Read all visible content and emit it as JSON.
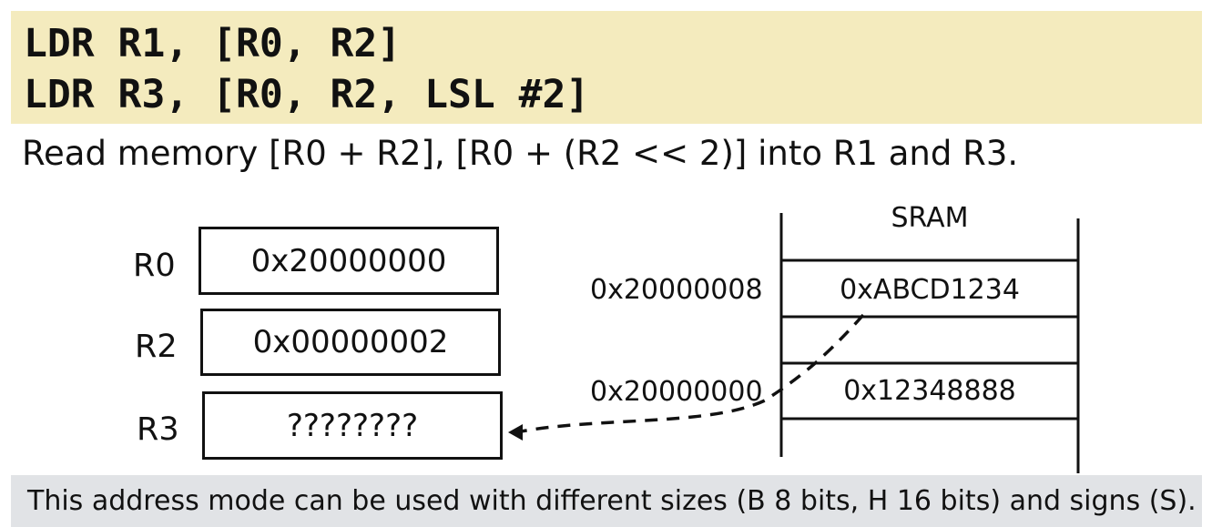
{
  "code": {
    "line1": "LDR R1, [R0, R2]",
    "line2": "LDR R3, [R0, R2, LSL #2]"
  },
  "description": "Read memory [R0 + R2], [R0 + (R2 << 2)] into R1 and R3.",
  "registers": [
    {
      "name": "R0",
      "value": "0x20000000"
    },
    {
      "name": "R2",
      "value": "0x00000002"
    },
    {
      "name": "R3",
      "value": "????????"
    }
  ],
  "memory": {
    "title": "SRAM",
    "cells": [
      {
        "address": "0x20000008",
        "value": "0xABCD1234"
      },
      {
        "address": "",
        "value": ""
      },
      {
        "address": "0x20000000",
        "value": "0x12348888"
      }
    ]
  },
  "note": "This address mode can be used with different sizes (B 8 bits, H 16 bits) and signs (S)."
}
